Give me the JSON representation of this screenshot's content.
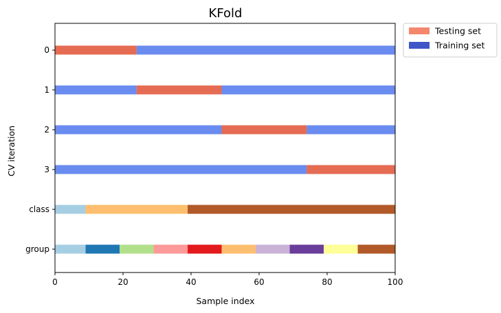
{
  "chart_data": {
    "type": "bar",
    "title": "KFold",
    "xlabel": "Sample index",
    "ylabel": "CV iteration",
    "xlim": [
      0,
      100
    ],
    "x_ticks": [
      0,
      20,
      40,
      60,
      80,
      100
    ],
    "grid": false,
    "legend_placement": "outside-top-right",
    "legend": [
      {
        "label": "Testing set",
        "color": "#f4876d"
      },
      {
        "label": "Training set",
        "color": "#4055c8"
      }
    ],
    "rows": [
      {
        "label": "0",
        "segments": [
          {
            "start": 0,
            "end": 24,
            "kind": "Testing set",
            "color": "#e56b52"
          },
          {
            "start": 24,
            "end": 100,
            "kind": "Training set",
            "color": "#6a8bef"
          }
        ]
      },
      {
        "label": "1",
        "segments": [
          {
            "start": 0,
            "end": 24,
            "kind": "Training set",
            "color": "#6a8bef"
          },
          {
            "start": 24,
            "end": 49,
            "kind": "Testing set",
            "color": "#e56b52"
          },
          {
            "start": 49,
            "end": 100,
            "kind": "Training set",
            "color": "#6a8bef"
          }
        ]
      },
      {
        "label": "2",
        "segments": [
          {
            "start": 0,
            "end": 49,
            "kind": "Training set",
            "color": "#6a8bef"
          },
          {
            "start": 49,
            "end": 74,
            "kind": "Testing set",
            "color": "#e56b52"
          },
          {
            "start": 74,
            "end": 100,
            "kind": "Training set",
            "color": "#6a8bef"
          }
        ]
      },
      {
        "label": "3",
        "segments": [
          {
            "start": 0,
            "end": 74,
            "kind": "Training set",
            "color": "#6a8bef"
          },
          {
            "start": 74,
            "end": 100,
            "kind": "Testing set",
            "color": "#e56b52"
          }
        ]
      },
      {
        "label": "class",
        "segments": [
          {
            "start": 0,
            "end": 9,
            "kind": "class 0",
            "color": "#a6cee3"
          },
          {
            "start": 9,
            "end": 39,
            "kind": "class 1",
            "color": "#fdbf6f"
          },
          {
            "start": 39,
            "end": 100,
            "kind": "class 2",
            "color": "#b15928"
          }
        ]
      },
      {
        "label": "group",
        "segments": [
          {
            "start": 0,
            "end": 9,
            "kind": "group 0",
            "color": "#a6cee3"
          },
          {
            "start": 9,
            "end": 19,
            "kind": "group 1",
            "color": "#1f78b4"
          },
          {
            "start": 19,
            "end": 29,
            "kind": "group 2",
            "color": "#b2df8a"
          },
          {
            "start": 29,
            "end": 39,
            "kind": "group 3",
            "color": "#fb9a99"
          },
          {
            "start": 39,
            "end": 49,
            "kind": "group 4",
            "color": "#e31a1c"
          },
          {
            "start": 49,
            "end": 59,
            "kind": "group 5",
            "color": "#fdbf6f"
          },
          {
            "start": 59,
            "end": 69,
            "kind": "group 6",
            "color": "#cab2d6"
          },
          {
            "start": 69,
            "end": 79,
            "kind": "group 7",
            "color": "#6a3d9a"
          },
          {
            "start": 79,
            "end": 89,
            "kind": "group 8",
            "color": "#ffff99"
          },
          {
            "start": 89,
            "end": 100,
            "kind": "group 9",
            "color": "#b15928"
          }
        ]
      }
    ]
  }
}
